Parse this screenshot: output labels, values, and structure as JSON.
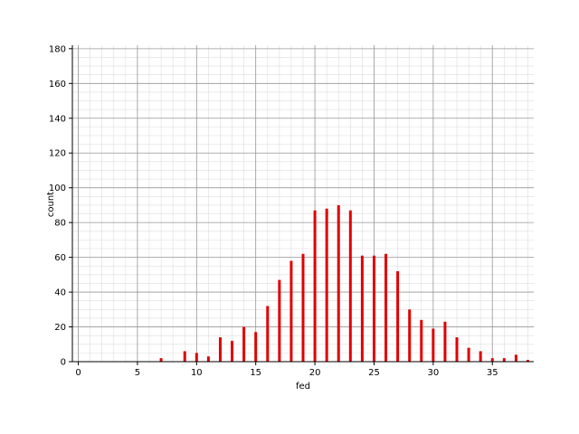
{
  "chart_data": {
    "type": "bar",
    "xlabel": "fed",
    "ylabel": "count",
    "xlim": [
      -0.5,
      38.5
    ],
    "ylim": [
      0,
      182
    ],
    "x_ticks": [
      0,
      5,
      10,
      15,
      20,
      25,
      30,
      35
    ],
    "y_ticks": [
      0,
      20,
      40,
      60,
      80,
      100,
      120,
      140,
      160,
      180
    ],
    "grid": true,
    "bar_color": "#e00000",
    "x": [
      0,
      1,
      2,
      3,
      4,
      5,
      6,
      7,
      8,
      9,
      10,
      11,
      12,
      13,
      14,
      15,
      16,
      17,
      18,
      19,
      20,
      21,
      22,
      23,
      24,
      25,
      26,
      27,
      28,
      29,
      30,
      31,
      32,
      33,
      34,
      35,
      36,
      37,
      38
    ],
    "values": [
      0,
      0,
      0,
      0,
      0,
      0,
      0,
      2,
      0,
      6,
      5,
      3,
      14,
      12,
      20,
      17,
      32,
      47,
      58,
      62,
      87,
      88,
      90,
      87,
      61,
      61,
      62,
      52,
      30,
      24,
      19,
      23,
      14,
      8,
      6,
      2,
      2,
      4,
      1
    ]
  }
}
